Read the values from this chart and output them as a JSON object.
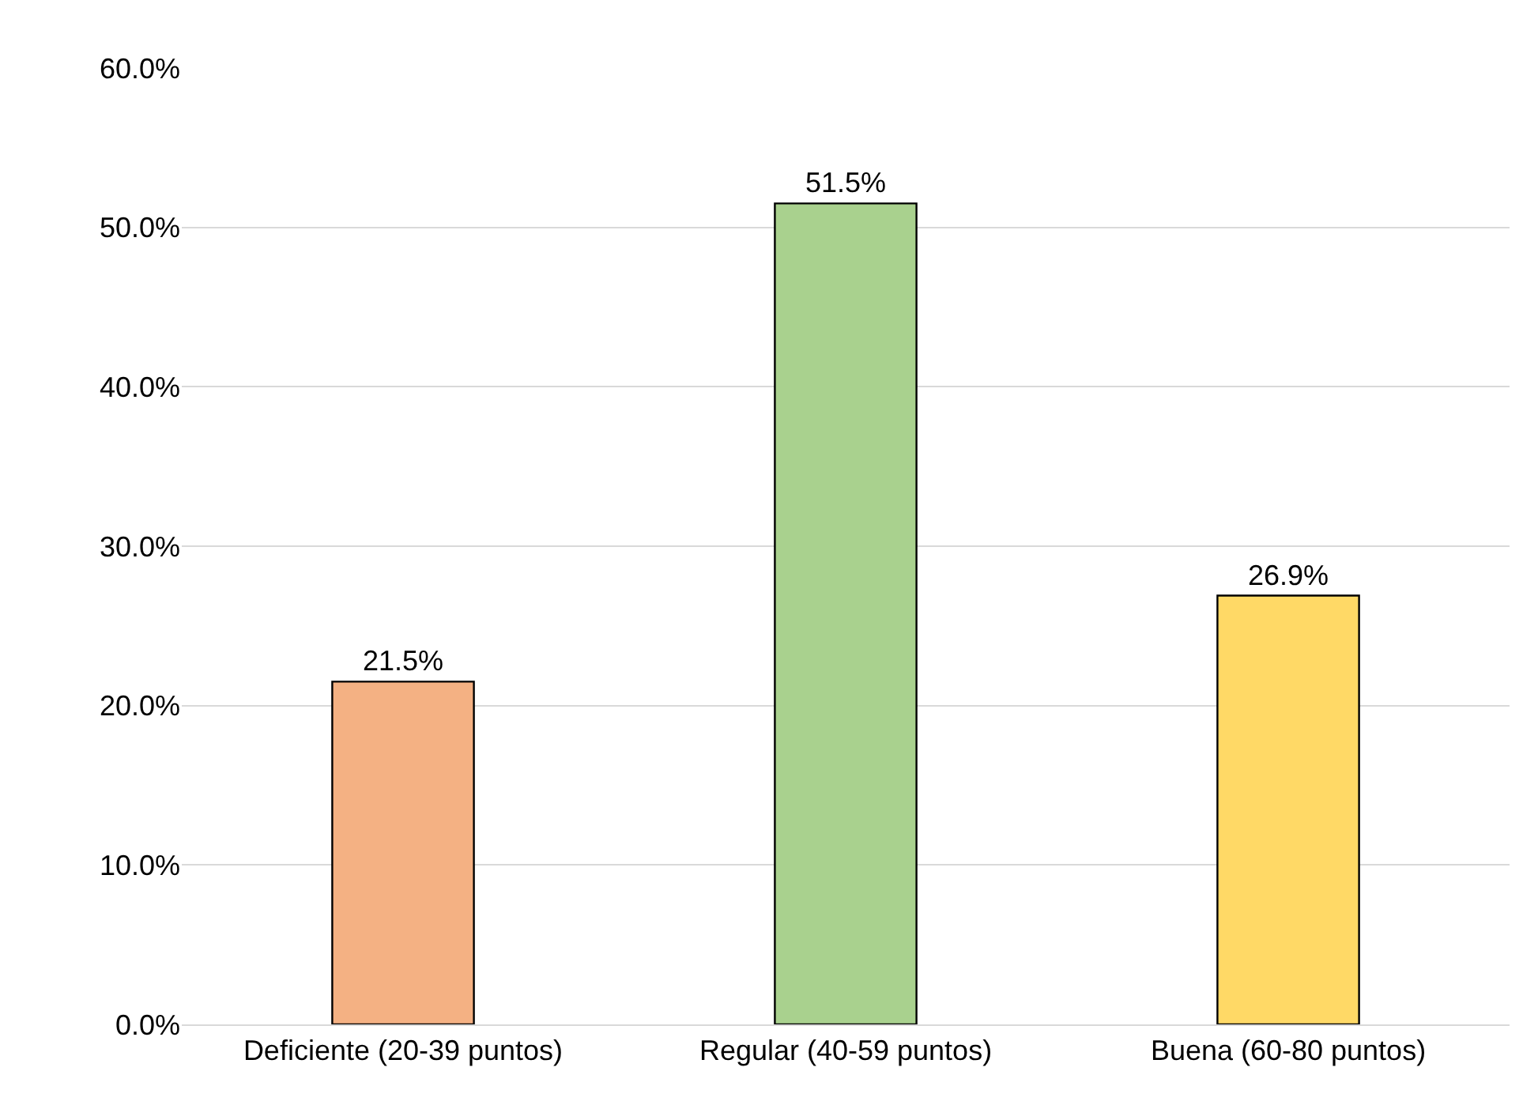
{
  "chart_data": {
    "type": "bar",
    "categories": [
      "Deficiente (20-39 puntos)",
      "Regular (40-59 puntos)",
      "Buena (60-80 puntos)"
    ],
    "values": [
      21.5,
      51.5,
      26.9
    ],
    "colors": [
      "#f4b183",
      "#a9d18e",
      "#ffd966"
    ],
    "value_labels": [
      "21.5%",
      "51.5%",
      "26.9%"
    ],
    "ylim": [
      0,
      60
    ],
    "yticks": [
      {
        "value": 0,
        "label": "0.0%"
      },
      {
        "value": 10,
        "label": "10.0%"
      },
      {
        "value": 20,
        "label": "20.0%"
      },
      {
        "value": 30,
        "label": "30.0%"
      },
      {
        "value": 40,
        "label": "40.0%"
      },
      {
        "value": 50,
        "label": "50.0%"
      },
      {
        "value": 60,
        "label": "60.0%"
      }
    ],
    "grid": "y"
  }
}
